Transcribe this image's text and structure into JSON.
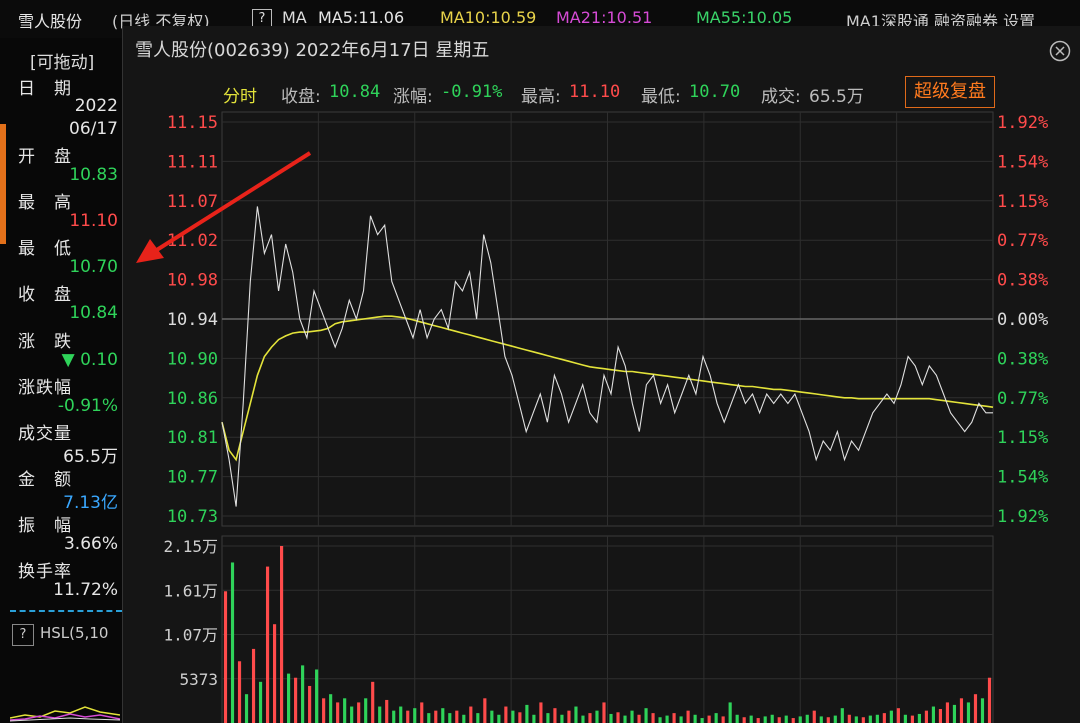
{
  "topbar": {
    "stock_name": "雪人股份",
    "chart_type": "(日线 不复权)",
    "help": "?",
    "ma_label": "MA",
    "ma5": "MA5:11.06",
    "ma10": "MA10:10.59",
    "ma21": "MA21:10.51",
    "ma55": "MA55:10.05",
    "ma1": "MA1深股通 融资融券 设置"
  },
  "left_panel": {
    "drag_label": "[可拖动]",
    "items": [
      {
        "label": "日　期",
        "value": "2022"
      },
      {
        "label": "",
        "value": "06/17"
      },
      {
        "label": "开　盘",
        "value": "10.83"
      },
      {
        "label": "最　高",
        "value": "11.10"
      },
      {
        "label": "最　低",
        "value": "10.70"
      },
      {
        "label": "收　盘",
        "value": "10.84"
      },
      {
        "label": "涨　跌",
        "value": "▼ 0.10"
      },
      {
        "label": "涨跌幅",
        "value": "-0.91%"
      },
      {
        "label": "成交量",
        "value": "65.5万"
      },
      {
        "label": "金　额",
        "value": "7.13亿"
      },
      {
        "label": "振　幅",
        "value": "3.66%"
      },
      {
        "label": "换手率",
        "value": "11.72%"
      }
    ],
    "indicator_help": "?",
    "indicator_label": "HSL(5,10"
  },
  "window": {
    "title": "雪人股份(002639)  2022年6月17日  星期五",
    "super_button": "超级复盘"
  },
  "summary": {
    "tab": "分时",
    "close_label": "收盘:",
    "close_value": "10.84",
    "change_label": "涨幅:",
    "change_value": "-0.91%",
    "high_label": "最高:",
    "high_value": "11.10",
    "low_label": "最低:",
    "low_value": "10.70",
    "volume_label": "成交:",
    "volume_value": "65.5万"
  },
  "colors": {
    "up": "#ff4b4b",
    "down": "#2fd35a",
    "price_line": "#e0e0e0",
    "avg_line": "#e3e33a",
    "accent": "#e06a1a"
  },
  "chart_data": {
    "type": "line",
    "title": "分时",
    "y_left_ticks": [
      "11.15",
      "11.11",
      "11.07",
      "11.02",
      "10.98",
      "10.94",
      "10.90",
      "10.86",
      "10.81",
      "10.77",
      "10.73"
    ],
    "y_right_ticks": [
      "1.92%",
      "1.54%",
      "1.15%",
      "0.77%",
      "0.38%",
      "0.00%",
      "0.38%",
      "0.77%",
      "1.15%",
      "1.54%",
      "1.92%"
    ],
    "ylim": [
      10.73,
      11.15
    ],
    "reference_price": 10.94,
    "price": [
      10.83,
      10.79,
      10.74,
      10.85,
      10.98,
      11.06,
      11.01,
      11.03,
      10.97,
      11.02,
      10.99,
      10.94,
      10.92,
      10.97,
      10.95,
      10.93,
      10.91,
      10.93,
      10.96,
      10.94,
      10.97,
      11.05,
      11.03,
      11.04,
      10.98,
      10.96,
      10.94,
      10.92,
      10.95,
      10.92,
      10.94,
      10.95,
      10.93,
      10.98,
      10.97,
      10.99,
      10.94,
      11.03,
      11.0,
      10.95,
      10.9,
      10.88,
      10.85,
      10.82,
      10.84,
      10.86,
      10.83,
      10.88,
      10.86,
      10.83,
      10.85,
      10.87,
      10.84,
      10.83,
      10.88,
      10.86,
      10.91,
      10.89,
      10.85,
      10.82,
      10.87,
      10.88,
      10.85,
      10.87,
      10.84,
      10.86,
      10.88,
      10.86,
      10.9,
      10.88,
      10.85,
      10.83,
      10.85,
      10.87,
      10.85,
      10.86,
      10.84,
      10.86,
      10.85,
      10.86,
      10.85,
      10.86,
      10.84,
      10.82,
      10.79,
      10.81,
      10.8,
      10.82,
      10.79,
      10.81,
      10.8,
      10.82,
      10.84,
      10.85,
      10.86,
      10.85,
      10.87,
      10.9,
      10.89,
      10.87,
      10.89,
      10.88,
      10.86,
      10.84,
      10.83,
      10.82,
      10.83,
      10.85,
      10.84,
      10.84
    ],
    "avg": [
      10.83,
      10.8,
      10.79,
      10.82,
      10.85,
      10.88,
      10.9,
      10.91,
      10.918,
      10.922,
      10.925,
      10.926,
      10.926,
      10.927,
      10.928,
      10.93,
      10.935,
      10.937,
      10.938,
      10.939,
      10.94,
      10.941,
      10.942,
      10.943,
      10.943,
      10.942,
      10.941,
      10.939,
      10.937,
      10.935,
      10.933,
      10.931,
      10.929,
      10.927,
      10.925,
      10.923,
      10.921,
      10.919,
      10.917,
      10.915,
      10.913,
      10.911,
      10.909,
      10.907,
      10.905,
      10.903,
      10.901,
      10.899,
      10.897,
      10.895,
      10.893,
      10.891,
      10.889,
      10.888,
      10.887,
      10.886,
      10.885,
      10.884,
      10.884,
      10.883,
      10.882,
      10.881,
      10.88,
      10.879,
      10.878,
      10.877,
      10.876,
      10.875,
      10.874,
      10.873,
      10.872,
      10.871,
      10.87,
      10.869,
      10.868,
      10.868,
      10.867,
      10.866,
      10.865,
      10.865,
      10.864,
      10.863,
      10.862,
      10.861,
      10.86,
      10.859,
      10.858,
      10.857,
      10.856,
      10.856,
      10.855,
      10.855,
      10.855,
      10.855,
      10.855,
      10.855,
      10.855,
      10.855,
      10.855,
      10.855,
      10.855,
      10.854,
      10.853,
      10.852,
      10.851,
      10.85,
      10.849,
      10.848,
      10.847,
      10.846
    ],
    "volume_ticks": [
      "2.15万",
      "1.61万",
      "1.07万",
      "5373"
    ],
    "volume_max": 21500,
    "volume": [
      16000,
      19500,
      7500,
      3500,
      9000,
      5000,
      19000,
      12000,
      21500,
      6000,
      5500,
      7000,
      4500,
      6500,
      3000,
      3500,
      2500,
      3000,
      2000,
      2500,
      3000,
      5000,
      2000,
      2800,
      1500,
      2000,
      1500,
      1800,
      2500,
      1200,
      1500,
      1800,
      1200,
      1500,
      1000,
      2000,
      1200,
      3000,
      1500,
      1000,
      2000,
      1500,
      1300,
      2200,
      1000,
      2500,
      1200,
      1800,
      1000,
      1500,
      2000,
      900,
      1200,
      1500,
      2500,
      1100,
      1300,
      900,
      1500,
      1000,
      1800,
      1200,
      700,
      900,
      1200,
      800,
      1500,
      1000,
      600,
      900,
      1200,
      800,
      2500,
      1000,
      700,
      900,
      600,
      800,
      1000,
      700,
      900,
      600,
      800,
      1000,
      1500,
      800,
      700,
      900,
      1800,
      1000,
      800,
      700,
      900,
      1000,
      1200,
      1500,
      1800,
      1000,
      900,
      1100,
      1500,
      2000,
      1700,
      2500,
      2200,
      3000,
      2500,
      3500,
      3000,
      5500
    ],
    "volume_up": [
      true,
      false,
      true,
      false,
      true,
      false,
      true,
      true,
      true,
      false,
      true,
      false,
      true,
      false,
      true,
      false,
      true,
      false,
      false,
      true,
      false,
      true,
      false,
      true,
      false,
      false,
      true,
      false,
      true,
      false,
      true,
      false,
      false,
      true,
      false,
      true,
      false,
      true,
      false,
      false,
      true,
      false,
      true,
      false,
      false,
      true,
      false,
      true,
      false,
      true,
      false,
      false,
      true,
      false,
      true,
      false,
      true,
      false,
      false,
      true,
      false,
      true,
      false,
      false,
      true,
      false,
      true,
      false,
      false,
      true,
      false,
      true,
      false,
      false,
      true,
      false,
      true,
      false,
      false,
      true,
      false,
      true,
      false,
      false,
      true,
      false,
      true,
      false,
      false,
      true,
      false,
      true,
      false,
      false,
      true,
      false,
      true,
      false,
      true,
      false,
      true,
      false,
      true,
      true,
      false,
      true,
      false,
      true,
      false,
      true
    ]
  }
}
